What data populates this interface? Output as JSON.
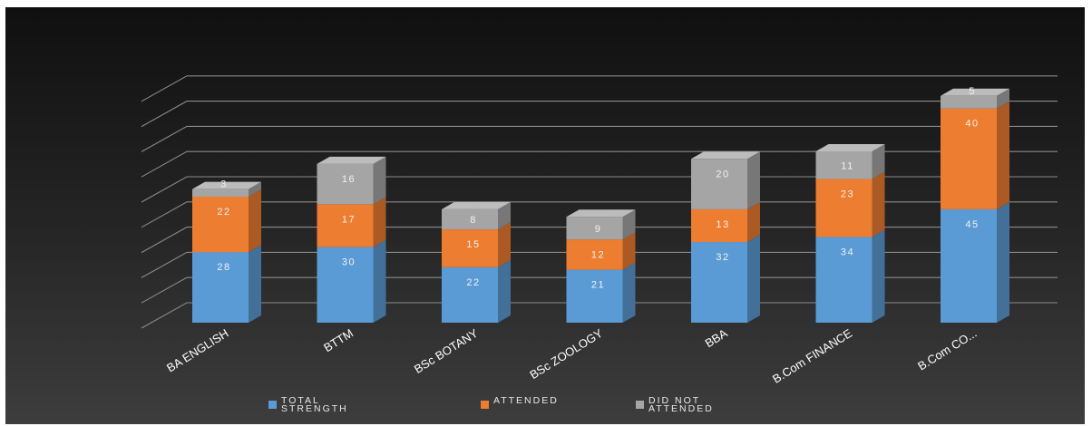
{
  "chart_data": {
    "type": "bar",
    "stacked": true,
    "categories": [
      "BA ENGLISH",
      "BTTM",
      "BSc BOTANY",
      "BSc ZOOLOGY",
      "BBA",
      "B.Com FINANCE",
      "B.Com CO..."
    ],
    "series": [
      {
        "name": "TOTAL STRENGTH",
        "color": "#5b9bd5",
        "values": [
          28,
          30,
          22,
          21,
          32,
          34,
          45
        ]
      },
      {
        "name": "ATTENDED",
        "color": "#ed7d31",
        "values": [
          22,
          17,
          15,
          12,
          13,
          23,
          40
        ]
      },
      {
        "name": "DID NOT ATTENDED",
        "color": "#a5a5a5",
        "values": [
          3,
          16,
          8,
          9,
          20,
          11,
          5
        ]
      }
    ],
    "ylim": [
      0,
      90
    ],
    "grid": true,
    "legend": "bottom",
    "title": "",
    "xlabel": "",
    "ylabel": ""
  }
}
